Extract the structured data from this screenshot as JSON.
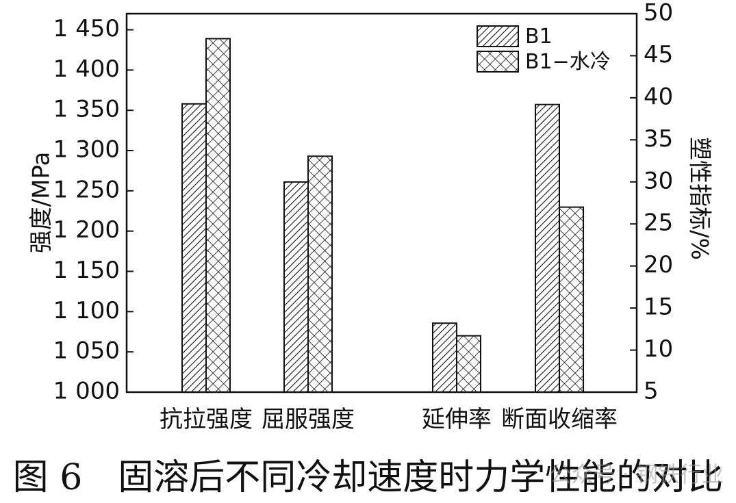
{
  "chart_data": {
    "type": "bar",
    "categories": [
      "抗拉强度",
      "屈服强度",
      "延伸率",
      "断面收缩率"
    ],
    "series": [
      {
        "name": "B1",
        "values": [
          1358,
          1261,
          13.2,
          39.2
        ]
      },
      {
        "name": "B1−水冷",
        "values": [
          1439,
          1293,
          11.7,
          27.0
        ]
      }
    ],
    "axes": {
      "left": {
        "label": "强度/MPa",
        "min": 1000,
        "max": 1470,
        "ticks": [
          1000,
          1050,
          1100,
          1150,
          1200,
          1250,
          1300,
          1350,
          1400,
          1450
        ],
        "tick_labels": [
          "1 000",
          "1 050",
          "1 100",
          "1 150",
          "1 200",
          "1 250",
          "1 300",
          "1 350",
          "1 400",
          "1 450"
        ],
        "applies_to": [
          "抗拉强度",
          "屈服强度"
        ]
      },
      "right": {
        "label": "塑性指标/%",
        "min": 5,
        "max": 50,
        "ticks": [
          5,
          10,
          15,
          20,
          25,
          30,
          35,
          40,
          45,
          50
        ],
        "tick_labels": [
          "5",
          "10",
          "15",
          "20",
          "25",
          "30",
          "35",
          "40",
          "45",
          "50"
        ],
        "applies_to": [
          "延伸率",
          "断面收缩率"
        ]
      }
    },
    "legend": {
      "position": "top-right"
    },
    "grid": false
  },
  "caption": {
    "figure_number": "图 6",
    "text": "固溶后不同冷却速度时力学性能的对比"
  },
  "watermark": "公众号 · 钢铁行业"
}
